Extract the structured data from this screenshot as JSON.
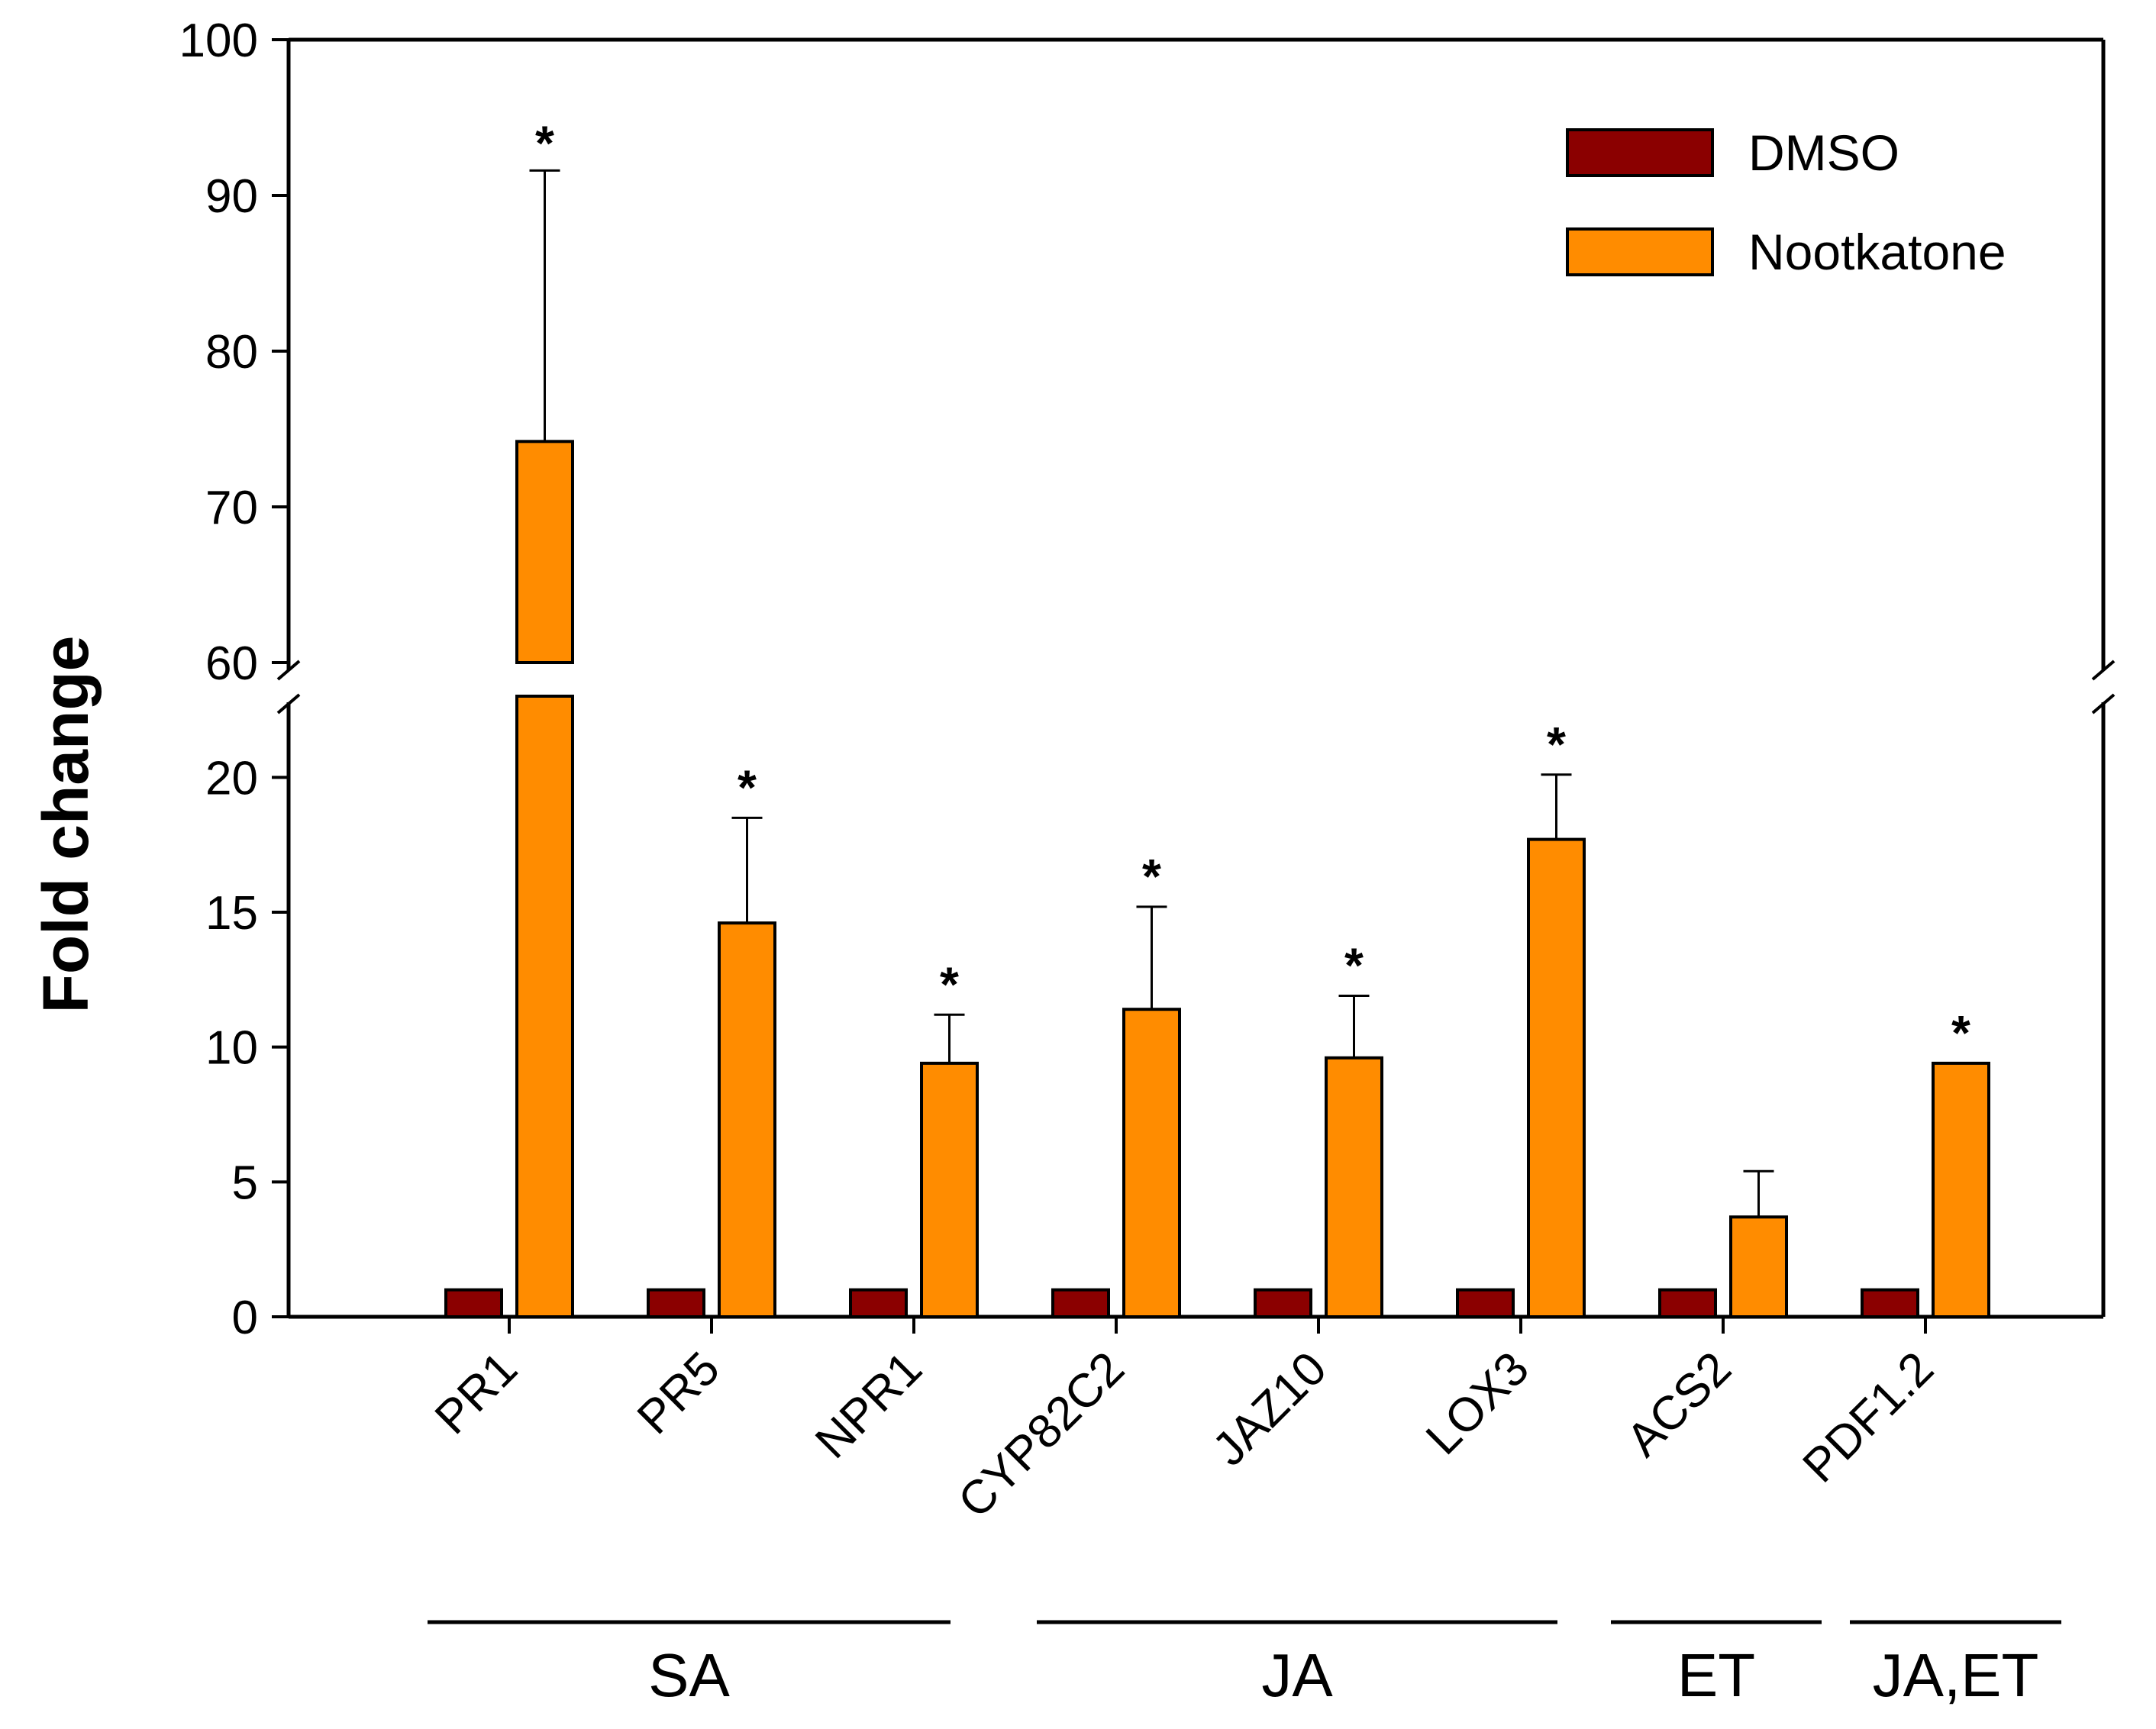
{
  "chart_data": {
    "type": "bar",
    "title": "",
    "xlabel": "",
    "ylabel": "Fold change",
    "y_axis_break": {
      "lower_range": [
        0,
        22.5
      ],
      "upper_range": [
        60,
        100
      ]
    },
    "lower_ticks": [
      "0",
      "5",
      "10",
      "15",
      "20"
    ],
    "upper_ticks": [
      "60",
      "70",
      "80",
      "90",
      "100"
    ],
    "categories": [
      "PR1",
      "PR5",
      "NPR1",
      "CYP82C2",
      "JAZ10",
      "LOX3",
      "ACS2",
      "PDF1.2"
    ],
    "series": [
      {
        "name": "DMSO",
        "color": "#8B0000",
        "values": [
          1,
          1,
          1,
          1,
          1,
          1,
          1,
          1
        ]
      },
      {
        "name": "Nootkatone",
        "color": "#FF8C00",
        "values": [
          74.2,
          14.6,
          9.4,
          11.4,
          9.6,
          17.7,
          3.7,
          9.4
        ],
        "error": [
          17.4,
          3.9,
          1.8,
          3.8,
          2.3,
          2.4,
          1.7,
          0
        ]
      }
    ],
    "significance": [
      "*",
      "*",
      "*",
      "*",
      "*",
      "*",
      "",
      "*"
    ],
    "groups": [
      {
        "label": "SA",
        "categories": [
          "PR1",
          "PR5",
          "NPR1"
        ]
      },
      {
        "label": "JA",
        "categories": [
          "CYP82C2",
          "JAZ10",
          "LOX3"
        ]
      },
      {
        "label": "ET",
        "categories": [
          "ACS2"
        ]
      },
      {
        "label": "JA,ET",
        "categories": [
          "PDF1.2"
        ]
      }
    ],
    "legend_position": "top-right"
  }
}
